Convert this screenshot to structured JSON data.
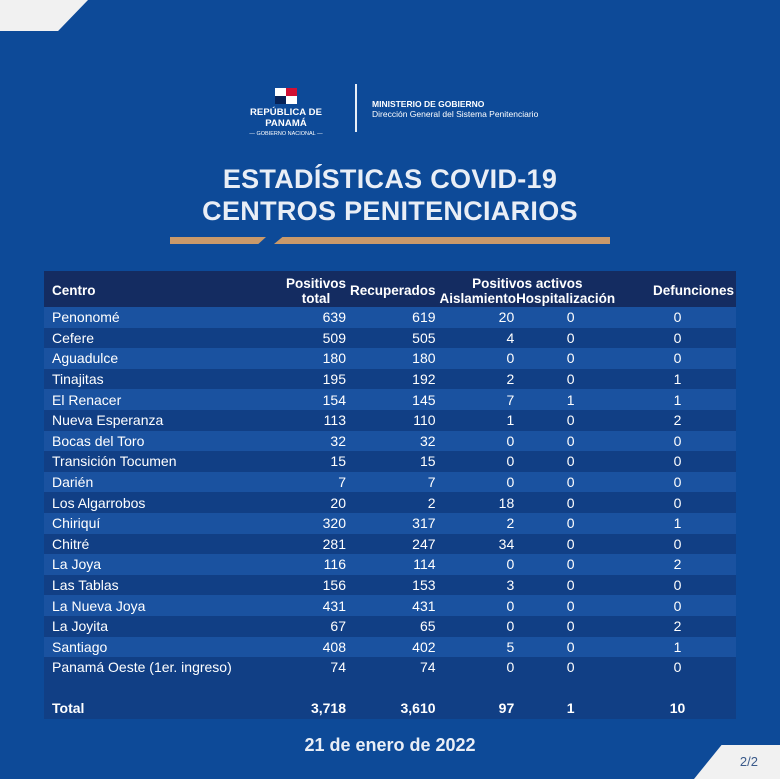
{
  "header": {
    "country": "REPÚBLICA DE PANAMÁ",
    "government": "GOBIERNO NACIONAL",
    "ministry": "MINISTERIO DE GOBIERNO",
    "direction": "Dirección General del Sistema Penitenciario"
  },
  "title": {
    "line1": "ESTADÍSTICAS COVID-19",
    "line2": "CENTROS PENITENCIARIOS"
  },
  "colors": {
    "background": "#0d4a98",
    "header_row": "#142c61",
    "accent_bar": "#c9996a"
  },
  "table": {
    "headers": {
      "centro": "Centro",
      "positivos_total_1": "Positivos",
      "positivos_total_2": "total",
      "recuperados": "Recuperados",
      "positivos_activos": "Positivos activos",
      "aislamiento": "Aislamiento",
      "hospitalizacion": "Hospitalización",
      "defunciones": "Defunciones"
    },
    "rows": [
      [
        "Penonomé",
        "639",
        "619",
        "20",
        "0",
        "0"
      ],
      [
        "Cefere",
        "509",
        "505",
        "4",
        "0",
        "0"
      ],
      [
        "Aguadulce",
        "180",
        "180",
        "0",
        "0",
        "0"
      ],
      [
        "Tinajitas",
        "195",
        "192",
        "2",
        "0",
        "1"
      ],
      [
        "El Renacer",
        "154",
        "145",
        "7",
        "1",
        "1"
      ],
      [
        "Nueva Esperanza",
        "113",
        "110",
        "1",
        "0",
        "2"
      ],
      [
        "Bocas del Toro",
        "32",
        "32",
        "0",
        "0",
        "0"
      ],
      [
        "Transición Tocumen",
        "15",
        "15",
        "0",
        "0",
        "0"
      ],
      [
        "Darién",
        "7",
        "7",
        "0",
        "0",
        "0"
      ],
      [
        "Los Algarrobos",
        "20",
        "2",
        "18",
        "0",
        "0"
      ],
      [
        "Chiriquí",
        "320",
        "317",
        "2",
        "0",
        "1"
      ],
      [
        "Chitré",
        "281",
        "247",
        "34",
        "0",
        "0"
      ],
      [
        "La Joya",
        "116",
        "114",
        "0",
        "0",
        "2"
      ],
      [
        "Las Tablas",
        "156",
        "153",
        "3",
        "0",
        "0"
      ],
      [
        "La Nueva Joya",
        "431",
        "431",
        "0",
        "0",
        "0"
      ],
      [
        "La Joyita",
        "67",
        "65",
        "0",
        "0",
        "2"
      ],
      [
        "Santiago",
        "408",
        "402",
        "5",
        "0",
        "1"
      ],
      [
        "Panamá Oeste (1er. ingreso)",
        "74",
        "74",
        "0",
        "0",
        "0"
      ]
    ],
    "total": [
      "Total",
      "3,718",
      "3,610",
      "97",
      "1",
      "10"
    ]
  },
  "date": "21 de enero de 2022",
  "page": "2/2"
}
